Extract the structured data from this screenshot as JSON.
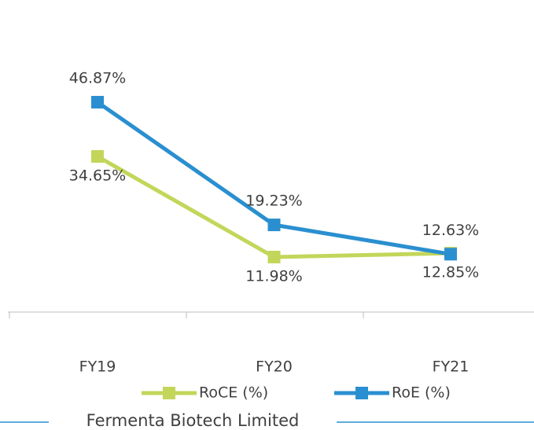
{
  "chart_data": {
    "type": "line",
    "categories": [
      "FY19",
      "FY20",
      "FY21"
    ],
    "series": [
      {
        "name": "RoCE (%)",
        "color": "#c3d65a",
        "values": [
          34.65,
          11.98,
          12.85
        ],
        "value_labels": [
          "34.65%",
          "11.98%",
          "12.85%"
        ]
      },
      {
        "name": "RoE (%)",
        "color": "#2a8fd0",
        "values": [
          46.87,
          19.23,
          12.63
        ],
        "value_labels": [
          "46.87%",
          "19.23%",
          "12.63%"
        ]
      }
    ],
    "footer": "Fermenta Biotech Limited"
  }
}
